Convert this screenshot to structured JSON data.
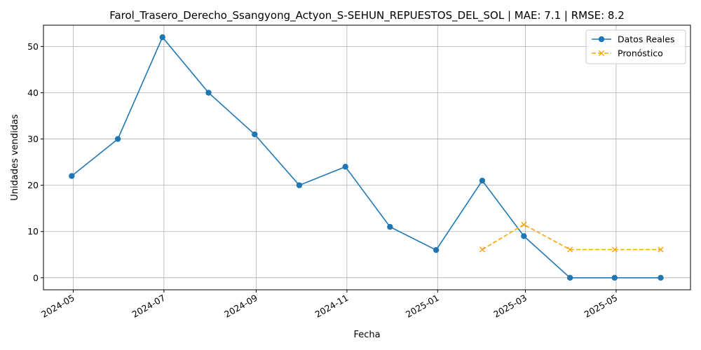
{
  "chart_data": {
    "type": "line",
    "title": "Farol_Trasero_Derecho_Ssangyong_Actyon_S-SEHUN_REPUESTOS_DEL_SOL | MAE: 7.1 | RMSE: 8.2",
    "xlabel": "Fecha",
    "ylabel": "Unidades vendidas",
    "x_ticks": [
      "2024-05",
      "2024-07",
      "2024-09",
      "2024-11",
      "2025-01",
      "2025-03",
      "2025-05"
    ],
    "y_ticks": [
      0,
      10,
      20,
      30,
      40,
      50
    ],
    "ylim": [
      -2.6,
      54.6
    ],
    "xlim": [
      "2024-04-11",
      "2025-06-20"
    ],
    "grid": true,
    "legend_position": "top-right",
    "series": [
      {
        "name": "Datos Reales",
        "color": "#1f77b4",
        "marker": "circle",
        "line_style": "solid",
        "x": [
          "2024-04-30",
          "2024-05-31",
          "2024-06-30",
          "2024-07-31",
          "2024-08-31",
          "2024-09-30",
          "2024-10-31",
          "2024-11-30",
          "2024-12-31",
          "2025-01-31",
          "2025-02-28",
          "2025-03-31",
          "2025-04-30",
          "2025-05-31"
        ],
        "values": [
          22,
          30,
          52,
          40,
          31,
          20,
          24,
          11,
          6,
          21,
          9,
          0,
          0,
          0
        ]
      },
      {
        "name": "Pronóstico",
        "color": "#ffa500",
        "marker": "x",
        "line_style": "dashed",
        "x": [
          "2025-01-31",
          "2025-02-28",
          "2025-03-31",
          "2025-04-30",
          "2025-05-31"
        ],
        "values": [
          6.1,
          11.5,
          6.1,
          6.1,
          6.1
        ]
      }
    ]
  }
}
